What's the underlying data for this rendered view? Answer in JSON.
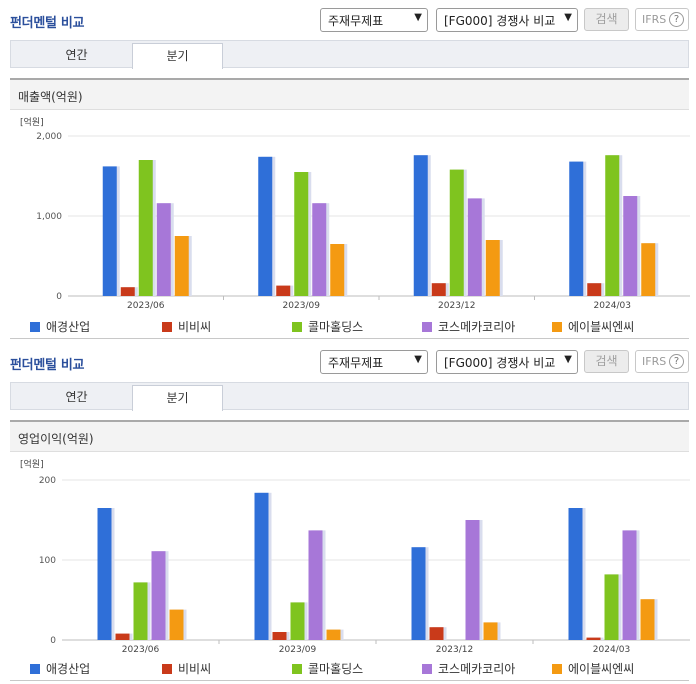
{
  "panels": [
    {
      "header": {
        "title": "펀더멘털 비교",
        "select1": "주재무제표",
        "select2": "[FG000] 경쟁사 비교",
        "search_label": "검색",
        "ifrs_label": "IFRS",
        "help_glyph": "?"
      },
      "tabs": [
        "연간",
        "분기"
      ],
      "section_title": "매출액(억원)",
      "chart_data": {
        "type": "bar",
        "unit_label": "[억원]",
        "ylim": [
          0,
          2000
        ],
        "yticks": [
          {
            "v": 0,
            "label": "0"
          },
          {
            "v": 1000,
            "label": "1,000"
          },
          {
            "v": 2000,
            "label": "2,000"
          }
        ],
        "grid": true,
        "legend_position": "bottom",
        "categories": [
          "2023/06",
          "2023/09",
          "2023/12",
          "2024/03"
        ],
        "series": [
          {
            "name": "애경산업",
            "color": "#2f6fd8",
            "values": [
              1620,
              1740,
              1760,
              1680
            ]
          },
          {
            "name": "비비씨",
            "color": "#c93a1a",
            "values": [
              110,
              130,
              160,
              160
            ]
          },
          {
            "name": "콜마홀딩스",
            "color": "#7fc41f",
            "values": [
              1700,
              1550,
              1580,
              1760
            ]
          },
          {
            "name": "코스메카코리아",
            "color": "#a777d8",
            "values": [
              1160,
              1160,
              1220,
              1250
            ]
          },
          {
            "name": "에이블씨엔씨",
            "color": "#f49a12",
            "values": [
              750,
              650,
              700,
              660
            ]
          }
        ]
      }
    },
    {
      "header": {
        "title": "펀더멘털 비교",
        "select1": "주재무제표",
        "select2": "[FG000] 경쟁사 비교",
        "search_label": "검색",
        "ifrs_label": "IFRS",
        "help_glyph": "?"
      },
      "tabs": [
        "연간",
        "분기"
      ],
      "section_title": "영업이익(억원)",
      "chart_data": {
        "type": "bar",
        "unit_label": "[억원]",
        "ylim": [
          0,
          200
        ],
        "yticks": [
          {
            "v": 0,
            "label": "0"
          },
          {
            "v": 100,
            "label": "100"
          },
          {
            "v": 200,
            "label": "200"
          }
        ],
        "grid": true,
        "legend_position": "bottom",
        "categories": [
          "2023/06",
          "2023/09",
          "2023/12",
          "2024/03"
        ],
        "series": [
          {
            "name": "애경산업",
            "color": "#2f6fd8",
            "values": [
              165,
              184,
              116,
              165
            ]
          },
          {
            "name": "비비씨",
            "color": "#c93a1a",
            "values": [
              8,
              10,
              16,
              3
            ]
          },
          {
            "name": "콜마홀딩스",
            "color": "#7fc41f",
            "values": [
              72,
              47,
              0,
              82
            ]
          },
          {
            "name": "코스메카코리아",
            "color": "#a777d8",
            "values": [
              111,
              137,
              150,
              137
            ]
          },
          {
            "name": "에이블씨엔씨",
            "color": "#f49a12",
            "values": [
              38,
              13,
              22,
              51
            ]
          }
        ]
      }
    }
  ]
}
